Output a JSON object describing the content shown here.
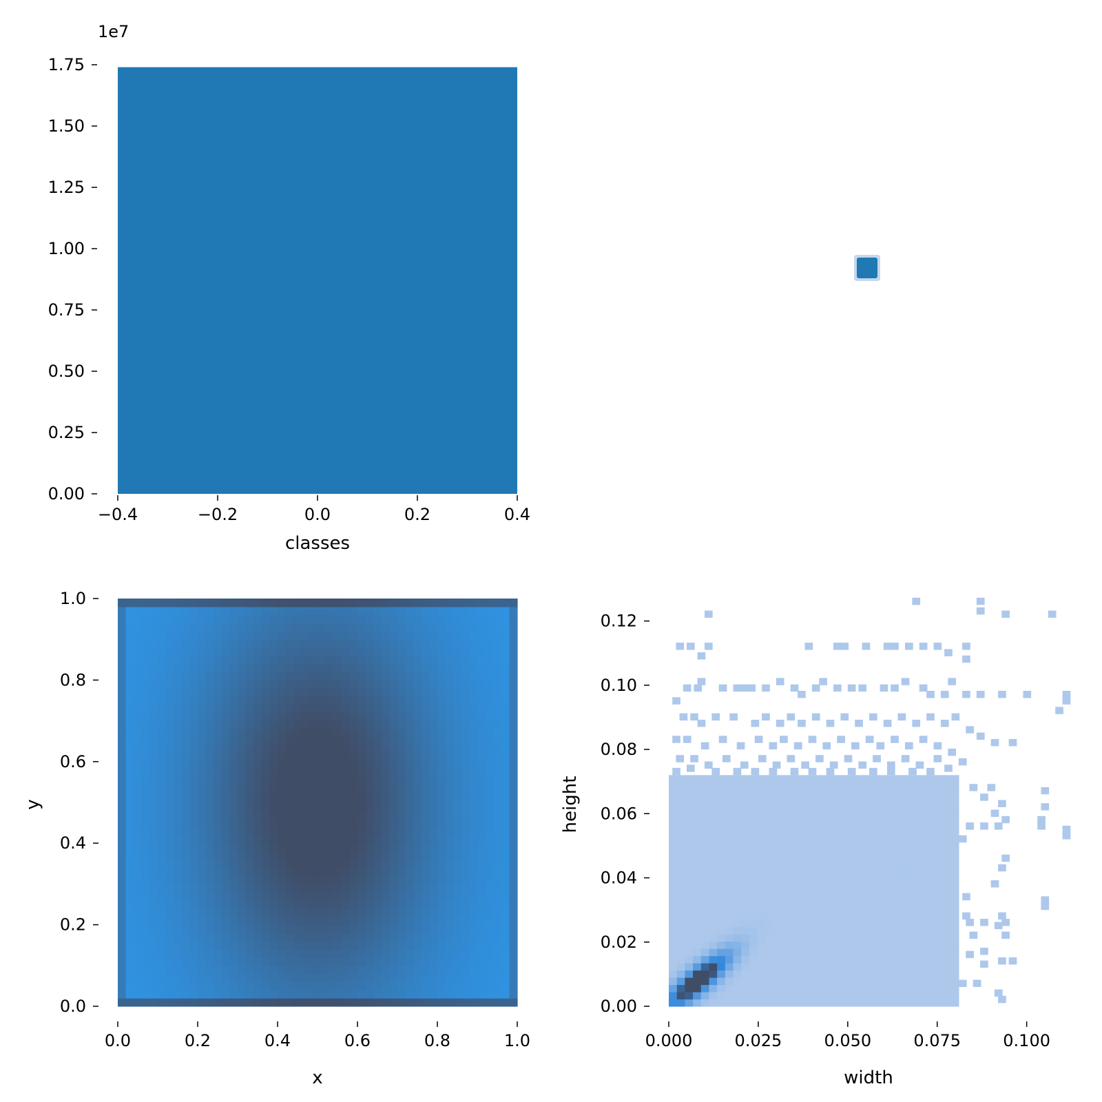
{
  "colors": {
    "bar": "#2078b4",
    "hist_light": "#2f94e4",
    "hist_dark": "#404d67",
    "hist2d_low": "#adc8eb",
    "hist2d_high": "#404d67",
    "tick": "#000000"
  },
  "chart_data": [
    {
      "id": "classes",
      "type": "bar",
      "categories": [
        0
      ],
      "values": [
        17400000
      ],
      "bar_width": 0.8,
      "xlabel": "classes",
      "ylabel": "",
      "offset_label": "1e7",
      "xlim": [
        -0.4,
        0.4
      ],
      "ylim": [
        0,
        17500000
      ],
      "xticks": [
        -0.4,
        -0.2,
        0.0,
        0.2,
        0.4
      ],
      "xtick_labels": [
        "−0.4",
        "−0.2",
        "0.0",
        "0.2",
        "0.4"
      ],
      "yticks": [
        0,
        2500000,
        5000000,
        7500000,
        10000000,
        12500000,
        15000000,
        17500000
      ],
      "ytick_labels": [
        "0.00",
        "0.25",
        "0.50",
        "0.75",
        "1.00",
        "1.25",
        "1.50",
        "1.75"
      ],
      "grid": false
    },
    {
      "id": "empty-panel",
      "type": "scatter",
      "note_visible_marker_only": true,
      "points": [
        [
          0.5,
          0.5
        ]
      ]
    },
    {
      "id": "xy",
      "type": "heatmap",
      "xlabel": "x",
      "ylabel": "y",
      "xlim": [
        0.0,
        1.0
      ],
      "ylim": [
        0.0,
        1.0
      ],
      "bins": 50,
      "center": [
        0.5,
        0.5
      ],
      "xticks": [
        0.0,
        0.2,
        0.4,
        0.6,
        0.8,
        1.0
      ],
      "xtick_labels": [
        "0.0",
        "0.2",
        "0.4",
        "0.6",
        "0.8",
        "1.0"
      ],
      "yticks": [
        0.0,
        0.2,
        0.4,
        0.6,
        0.8,
        1.0
      ],
      "ytick_labels": [
        "0.0",
        "0.2",
        "0.4",
        "0.6",
        "0.8",
        "1.0"
      ],
      "grid": false
    },
    {
      "id": "width-height",
      "type": "heatmap",
      "xlabel": "width",
      "ylabel": "height",
      "xlim": [
        0.0,
        0.112
      ],
      "ylim": [
        0.0,
        0.127
      ],
      "bin_size": 0.00225,
      "xticks": [
        0.0,
        0.025,
        0.05,
        0.075,
        0.1
      ],
      "xtick_labels": [
        "0.000",
        "0.025",
        "0.050",
        "0.075",
        "0.100"
      ],
      "yticks": [
        0.0,
        0.02,
        0.04,
        0.06,
        0.08,
        0.1,
        0.12
      ],
      "ytick_labels": [
        "0.00",
        "0.02",
        "0.04",
        "0.06",
        "0.08",
        "0.10",
        "0.12"
      ],
      "dense_region": {
        "width_max": 0.081,
        "height_max": 0.071
      },
      "peak": {
        "width": 0.008,
        "height": 0.008
      },
      "sparse_cells": [
        [
          0.01,
          0.121
        ],
        [
          0.068,
          0.125
        ],
        [
          0.086,
          0.122
        ],
        [
          0.093,
          0.121
        ],
        [
          0.106,
          0.121
        ],
        [
          0.002,
          0.111
        ],
        [
          0.005,
          0.111
        ],
        [
          0.01,
          0.111
        ],
        [
          0.008,
          0.108
        ],
        [
          0.038,
          0.111
        ],
        [
          0.046,
          0.111
        ],
        [
          0.048,
          0.111
        ],
        [
          0.054,
          0.111
        ],
        [
          0.06,
          0.111
        ],
        [
          0.062,
          0.111
        ],
        [
          0.066,
          0.111
        ],
        [
          0.07,
          0.111
        ],
        [
          0.074,
          0.111
        ],
        [
          0.077,
          0.109
        ],
        [
          0.082,
          0.111
        ],
        [
          0.082,
          0.107
        ],
        [
          0.086,
          0.125
        ],
        [
          0.004,
          0.098
        ],
        [
          0.007,
          0.098
        ],
        [
          0.008,
          0.1
        ],
        [
          0.014,
          0.098
        ],
        [
          0.018,
          0.098
        ],
        [
          0.02,
          0.098
        ],
        [
          0.022,
          0.098
        ],
        [
          0.026,
          0.098
        ],
        [
          0.03,
          0.1
        ],
        [
          0.034,
          0.098
        ],
        [
          0.036,
          0.096
        ],
        [
          0.04,
          0.098
        ],
        [
          0.042,
          0.1
        ],
        [
          0.046,
          0.098
        ],
        [
          0.05,
          0.098
        ],
        [
          0.053,
          0.098
        ],
        [
          0.059,
          0.098
        ],
        [
          0.062,
          0.098
        ],
        [
          0.065,
          0.1
        ],
        [
          0.07,
          0.098
        ],
        [
          0.072,
          0.096
        ],
        [
          0.076,
          0.096
        ],
        [
          0.078,
          0.1
        ],
        [
          0.082,
          0.096
        ],
        [
          0.086,
          0.096
        ],
        [
          0.092,
          0.096
        ],
        [
          0.099,
          0.096
        ],
        [
          0.11,
          0.096
        ],
        [
          0.11,
          0.094
        ],
        [
          0.108,
          0.091
        ],
        [
          0.001,
          0.094
        ],
        [
          0.003,
          0.089
        ],
        [
          0.006,
          0.089
        ],
        [
          0.008,
          0.087
        ],
        [
          0.012,
          0.089
        ],
        [
          0.017,
          0.089
        ],
        [
          0.023,
          0.087
        ],
        [
          0.026,
          0.089
        ],
        [
          0.03,
          0.087
        ],
        [
          0.033,
          0.089
        ],
        [
          0.036,
          0.087
        ],
        [
          0.04,
          0.089
        ],
        [
          0.044,
          0.087
        ],
        [
          0.048,
          0.089
        ],
        [
          0.052,
          0.087
        ],
        [
          0.056,
          0.089
        ],
        [
          0.06,
          0.087
        ],
        [
          0.064,
          0.089
        ],
        [
          0.068,
          0.087
        ],
        [
          0.072,
          0.089
        ],
        [
          0.076,
          0.087
        ],
        [
          0.079,
          0.089
        ],
        [
          0.083,
          0.085
        ],
        [
          0.086,
          0.083
        ],
        [
          0.09,
          0.081
        ],
        [
          0.095,
          0.081
        ],
        [
          0.001,
          0.082
        ],
        [
          0.004,
          0.082
        ],
        [
          0.009,
          0.08
        ],
        [
          0.014,
          0.082
        ],
        [
          0.019,
          0.08
        ],
        [
          0.024,
          0.082
        ],
        [
          0.028,
          0.08
        ],
        [
          0.031,
          0.082
        ],
        [
          0.035,
          0.08
        ],
        [
          0.039,
          0.082
        ],
        [
          0.043,
          0.08
        ],
        [
          0.047,
          0.082
        ],
        [
          0.051,
          0.08
        ],
        [
          0.055,
          0.082
        ],
        [
          0.058,
          0.08
        ],
        [
          0.062,
          0.082
        ],
        [
          0.066,
          0.08
        ],
        [
          0.07,
          0.082
        ],
        [
          0.074,
          0.08
        ],
        [
          0.078,
          0.078
        ],
        [
          0.002,
          0.076
        ],
        [
          0.006,
          0.076
        ],
        [
          0.01,
          0.074
        ],
        [
          0.015,
          0.076
        ],
        [
          0.02,
          0.074
        ],
        [
          0.025,
          0.076
        ],
        [
          0.029,
          0.074
        ],
        [
          0.033,
          0.076
        ],
        [
          0.037,
          0.074
        ],
        [
          0.041,
          0.076
        ],
        [
          0.045,
          0.074
        ],
        [
          0.049,
          0.076
        ],
        [
          0.053,
          0.074
        ],
        [
          0.057,
          0.076
        ],
        [
          0.061,
          0.074
        ],
        [
          0.065,
          0.076
        ],
        [
          0.069,
          0.074
        ],
        [
          0.074,
          0.076
        ],
        [
          0.077,
          0.073
        ],
        [
          0.081,
          0.075
        ],
        [
          0.001,
          0.072
        ],
        [
          0.005,
          0.073
        ],
        [
          0.012,
          0.072
        ],
        [
          0.018,
          0.072
        ],
        [
          0.023,
          0.072
        ],
        [
          0.028,
          0.072
        ],
        [
          0.034,
          0.072
        ],
        [
          0.039,
          0.072
        ],
        [
          0.044,
          0.072
        ],
        [
          0.05,
          0.072
        ],
        [
          0.056,
          0.072
        ],
        [
          0.061,
          0.072
        ],
        [
          0.067,
          0.072
        ],
        [
          0.072,
          0.072
        ],
        [
          0.084,
          0.067
        ],
        [
          0.089,
          0.067
        ],
        [
          0.087,
          0.064
        ],
        [
          0.092,
          0.062
        ],
        [
          0.09,
          0.059
        ],
        [
          0.093,
          0.057
        ],
        [
          0.083,
          0.055
        ],
        [
          0.087,
          0.055
        ],
        [
          0.091,
          0.055
        ],
        [
          0.081,
          0.051
        ],
        [
          0.093,
          0.045
        ],
        [
          0.092,
          0.042
        ],
        [
          0.09,
          0.037
        ],
        [
          0.104,
          0.066
        ],
        [
          0.104,
          0.061
        ],
        [
          0.103,
          0.057
        ],
        [
          0.103,
          0.055
        ],
        [
          0.11,
          0.052
        ],
        [
          0.11,
          0.054
        ],
        [
          0.075,
          0.034
        ],
        [
          0.082,
          0.033
        ],
        [
          0.075,
          0.03
        ],
        [
          0.082,
          0.027
        ],
        [
          0.083,
          0.025
        ],
        [
          0.087,
          0.025
        ],
        [
          0.092,
          0.027
        ],
        [
          0.091,
          0.024
        ],
        [
          0.093,
          0.025
        ],
        [
          0.093,
          0.021
        ],
        [
          0.104,
          0.03
        ],
        [
          0.104,
          0.032
        ],
        [
          0.084,
          0.021
        ],
        [
          0.075,
          0.021
        ],
        [
          0.083,
          0.015
        ],
        [
          0.087,
          0.016
        ],
        [
          0.087,
          0.012
        ],
        [
          0.092,
          0.013
        ],
        [
          0.095,
          0.013
        ],
        [
          0.075,
          0.012
        ],
        [
          0.075,
          0.006
        ],
        [
          0.078,
          0.006
        ],
        [
          0.081,
          0.006
        ],
        [
          0.085,
          0.006
        ],
        [
          0.091,
          0.003
        ],
        [
          0.092,
          0.001
        ]
      ],
      "grid": false
    }
  ],
  "panels": {
    "top_left": {
      "offset_label": "1e7",
      "xlabel": "classes"
    },
    "bottom_left": {
      "xlabel": "x",
      "ylabel": "y"
    },
    "bottom_right": {
      "xlabel": "width",
      "ylabel": "height"
    }
  }
}
